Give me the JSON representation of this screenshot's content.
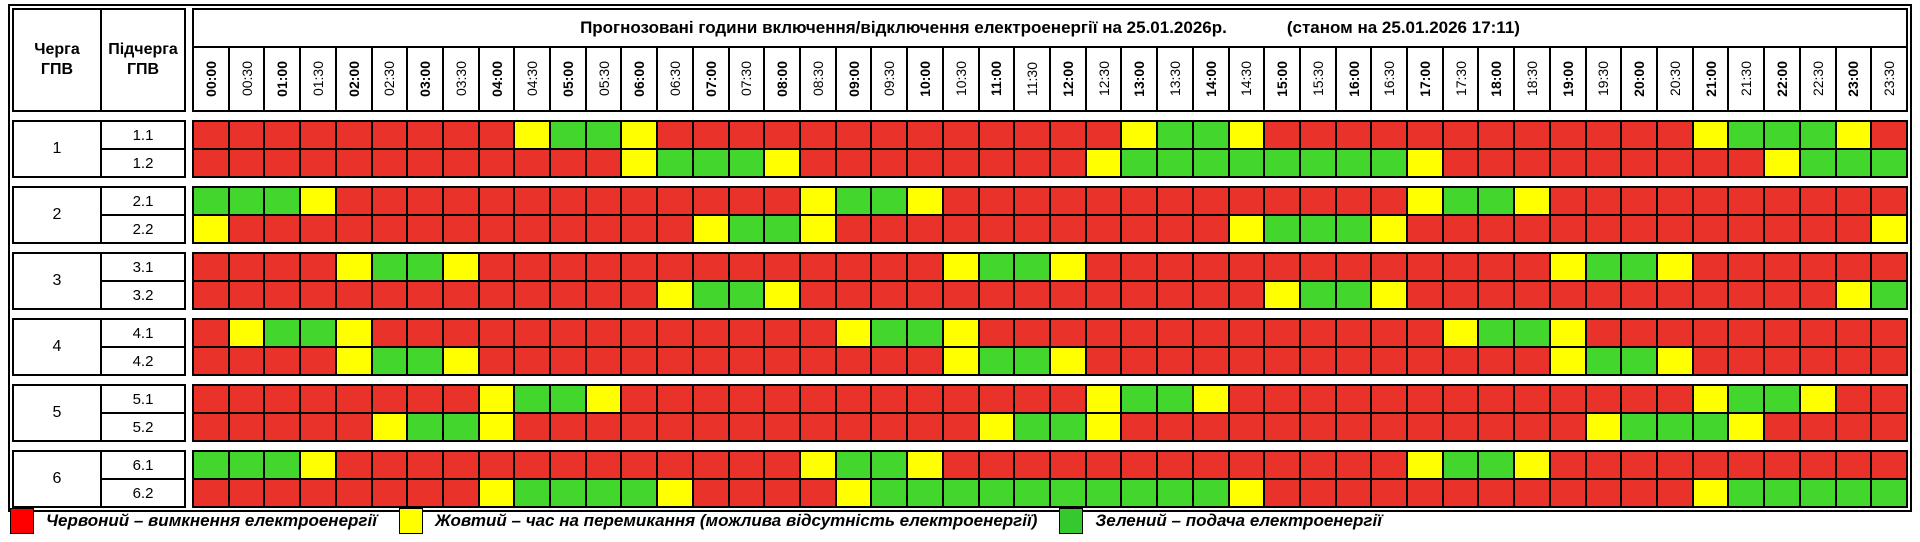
{
  "title": {
    "main": "Прогнозовані години включення/відключення електроенергії на 25.01.2026р.",
    "status": "(станом на 25.01.2026 17:11)"
  },
  "corner": {
    "queue_header": "Черга\nГПВ",
    "subqueue_header": "Підчерга\nГПВ"
  },
  "colors": {
    "red": "#e9332a",
    "yellow": "#ffff00",
    "green": "#43d62d",
    "legend_red": "#ff0000",
    "legend_yellow": "#ffff00",
    "legend_green": "#35c82f"
  },
  "legend": [
    {
      "name": "legend-red",
      "state": "R",
      "label": "Червоний – вимкнення електроенергії"
    },
    {
      "name": "legend-yellow",
      "state": "Y",
      "label": "Жовтий – час на перемикання (можлива відсутність електроенергії)"
    },
    {
      "name": "legend-green",
      "state": "G",
      "label": "Зелений – подача електроенергії"
    }
  ],
  "chart_data": {
    "type": "heatmap",
    "title": "Прогнозовані години включення/відключення електроенергії на 25.01.2026р.",
    "status_note": "(станом на 25.01.2026 17:11)",
    "x_categories": [
      "00:00",
      "00:30",
      "01:00",
      "01:30",
      "02:00",
      "02:30",
      "03:00",
      "03:30",
      "04:00",
      "04:30",
      "05:00",
      "05:30",
      "06:00",
      "06:30",
      "07:00",
      "07:30",
      "08:00",
      "08:30",
      "09:00",
      "09:30",
      "10:00",
      "10:30",
      "11:00",
      "11:30",
      "12:00",
      "12:30",
      "13:00",
      "13:30",
      "14:00",
      "14:30",
      "15:00",
      "15:30",
      "16:00",
      "16:30",
      "17:00",
      "17:30",
      "18:00",
      "18:30",
      "19:00",
      "19:30",
      "20:00",
      "20:30",
      "21:00",
      "21:30",
      "22:00",
      "22:30",
      "23:00",
      "23:30"
    ],
    "state_legend": {
      "R": "вимкнення електроенергії",
      "Y": "час на перемикання (можлива відсутність електроенергії)",
      "G": "подача електроенергії"
    },
    "rows": [
      {
        "queue": "1",
        "subqueue": "1.1",
        "states": "RRRRRRRRRYGGYRRRRRRRRRRRRRYGGYRRRRRRRRRRRRYGGGYR"
      },
      {
        "queue": "1",
        "subqueue": "1.2",
        "states": "RRRRRRRRRRRRYGGGYRRRRRRRRYGGGGGGGGYRRRRRRRRRYGGG"
      },
      {
        "queue": "2",
        "subqueue": "2.1",
        "states": "GGGYRRRRRRRRRRRRRYGGYRRRRRRRRRRRRRYGGYRRRRRRRRRR"
      },
      {
        "queue": "2",
        "subqueue": "2.2",
        "states": "YRRRRRRRRRRRRRYGGYRRRRRRRRRRRYGGGYRRRRRRRRRRRRRY"
      },
      {
        "queue": "3",
        "subqueue": "3.1",
        "states": "RRRRYGGYRRRRRRRRRRRRRYGGYRRRRRRRRRRRRRYGGYRRRRRR"
      },
      {
        "queue": "3",
        "subqueue": "3.2",
        "states": "RRRRRRRRRRRRRYGGYRRRRRRRRRRRRRYGGYRRRRRRRRRRRRYG"
      },
      {
        "queue": "4",
        "subqueue": "4.1",
        "states": "RYGGYRRRRRRRRRRRRRYGGYRRRRRRRRRRRRRYGGYRRRRRRRRR"
      },
      {
        "queue": "4",
        "subqueue": "4.2",
        "states": "RRRRYGGYRRRRRRRRRRRRRYGGYRRRRRRRRRRRRRYGGYRRRRRR"
      },
      {
        "queue": "5",
        "subqueue": "5.1",
        "states": "RRRRRRRRYGGYRRRRRRRRRRRRRYGGYRRRRRRRRRRRRRYGGYRR"
      },
      {
        "queue": "5",
        "subqueue": "5.2",
        "states": "RRRRRYGGYRRRRRRRRRRRRRYGGYRRRRRRRRRRRRRYGGGYRRRR"
      },
      {
        "queue": "6",
        "subqueue": "6.1",
        "states": "GGGYRRRRRRRRRRRRRYGGYRRRRRRRRRRRRRYGGYRRRRRRRRRR"
      },
      {
        "queue": "6",
        "subqueue": "6.2",
        "states": "RRRRRRRRYGGGGYRRRRYGGGGGGGGGGYRRRRRRRRRRRRYGGGGG"
      }
    ]
  }
}
